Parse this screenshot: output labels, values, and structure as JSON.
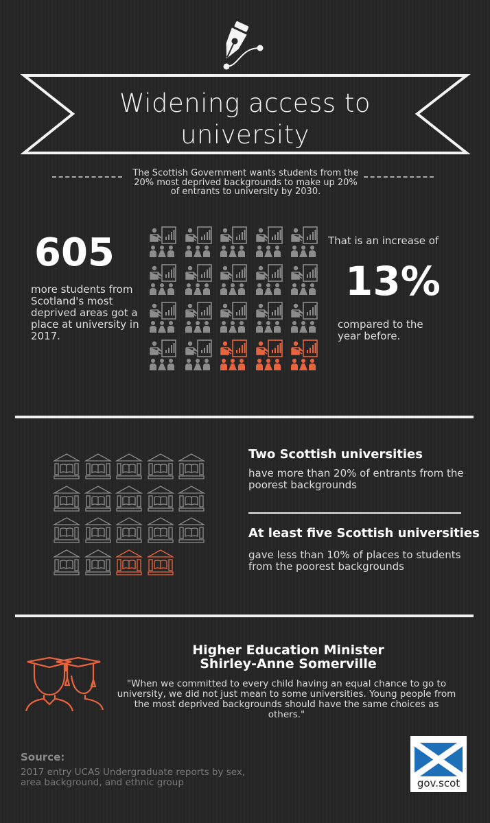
{
  "header": {
    "icon": "pen-nib-icon",
    "title_line1": "Widening access to",
    "title_line2": "university",
    "subtitle": "The Scottish Government wants students from the 20% most deprived backgrounds to make up 20% of entrants to university by 2030."
  },
  "students": {
    "number": "605",
    "description": "more students from Scotland's most deprived areas got a place at university in 2017.",
    "increase_intro": "That is an increase of",
    "increase_value": "13%",
    "increase_outro": "compared to the year before.",
    "icon": "presenter-audience-icon",
    "icon_total": 20,
    "icon_highlighted": 3
  },
  "universities": {
    "icon": "university-building-icon",
    "icon_total": 19,
    "icon_highlighted": 2,
    "stat1_heading": "Two Scottish universities",
    "stat1_text": "have more than 20% of entrants from the poorest backgrounds",
    "stat2_heading": "At least five Scottish universities",
    "stat2_text": "gave less than 10% of places to students from the poorest backgrounds"
  },
  "quote": {
    "icon": "graduates-icon",
    "heading_line1": "Higher Education Minister",
    "heading_line2": "Shirley-Anne Somerville",
    "text": "\"When we committed to every child having an equal chance to go to university, we did not just mean to some universities. Young people from the most deprived backgrounds should have the same choices as others.\""
  },
  "source": {
    "label": "Source:",
    "text": "2017 entry UCAS Undergraduate reports by sex, area background, and ethnic group"
  },
  "logo": {
    "text": "gov.scot",
    "flag": "saltire-flag-icon"
  },
  "colors": {
    "background": "#262626",
    "icon_gray": "#8c8c8c",
    "accent": "#e8643f",
    "flag_blue": "#1d6fb8"
  }
}
